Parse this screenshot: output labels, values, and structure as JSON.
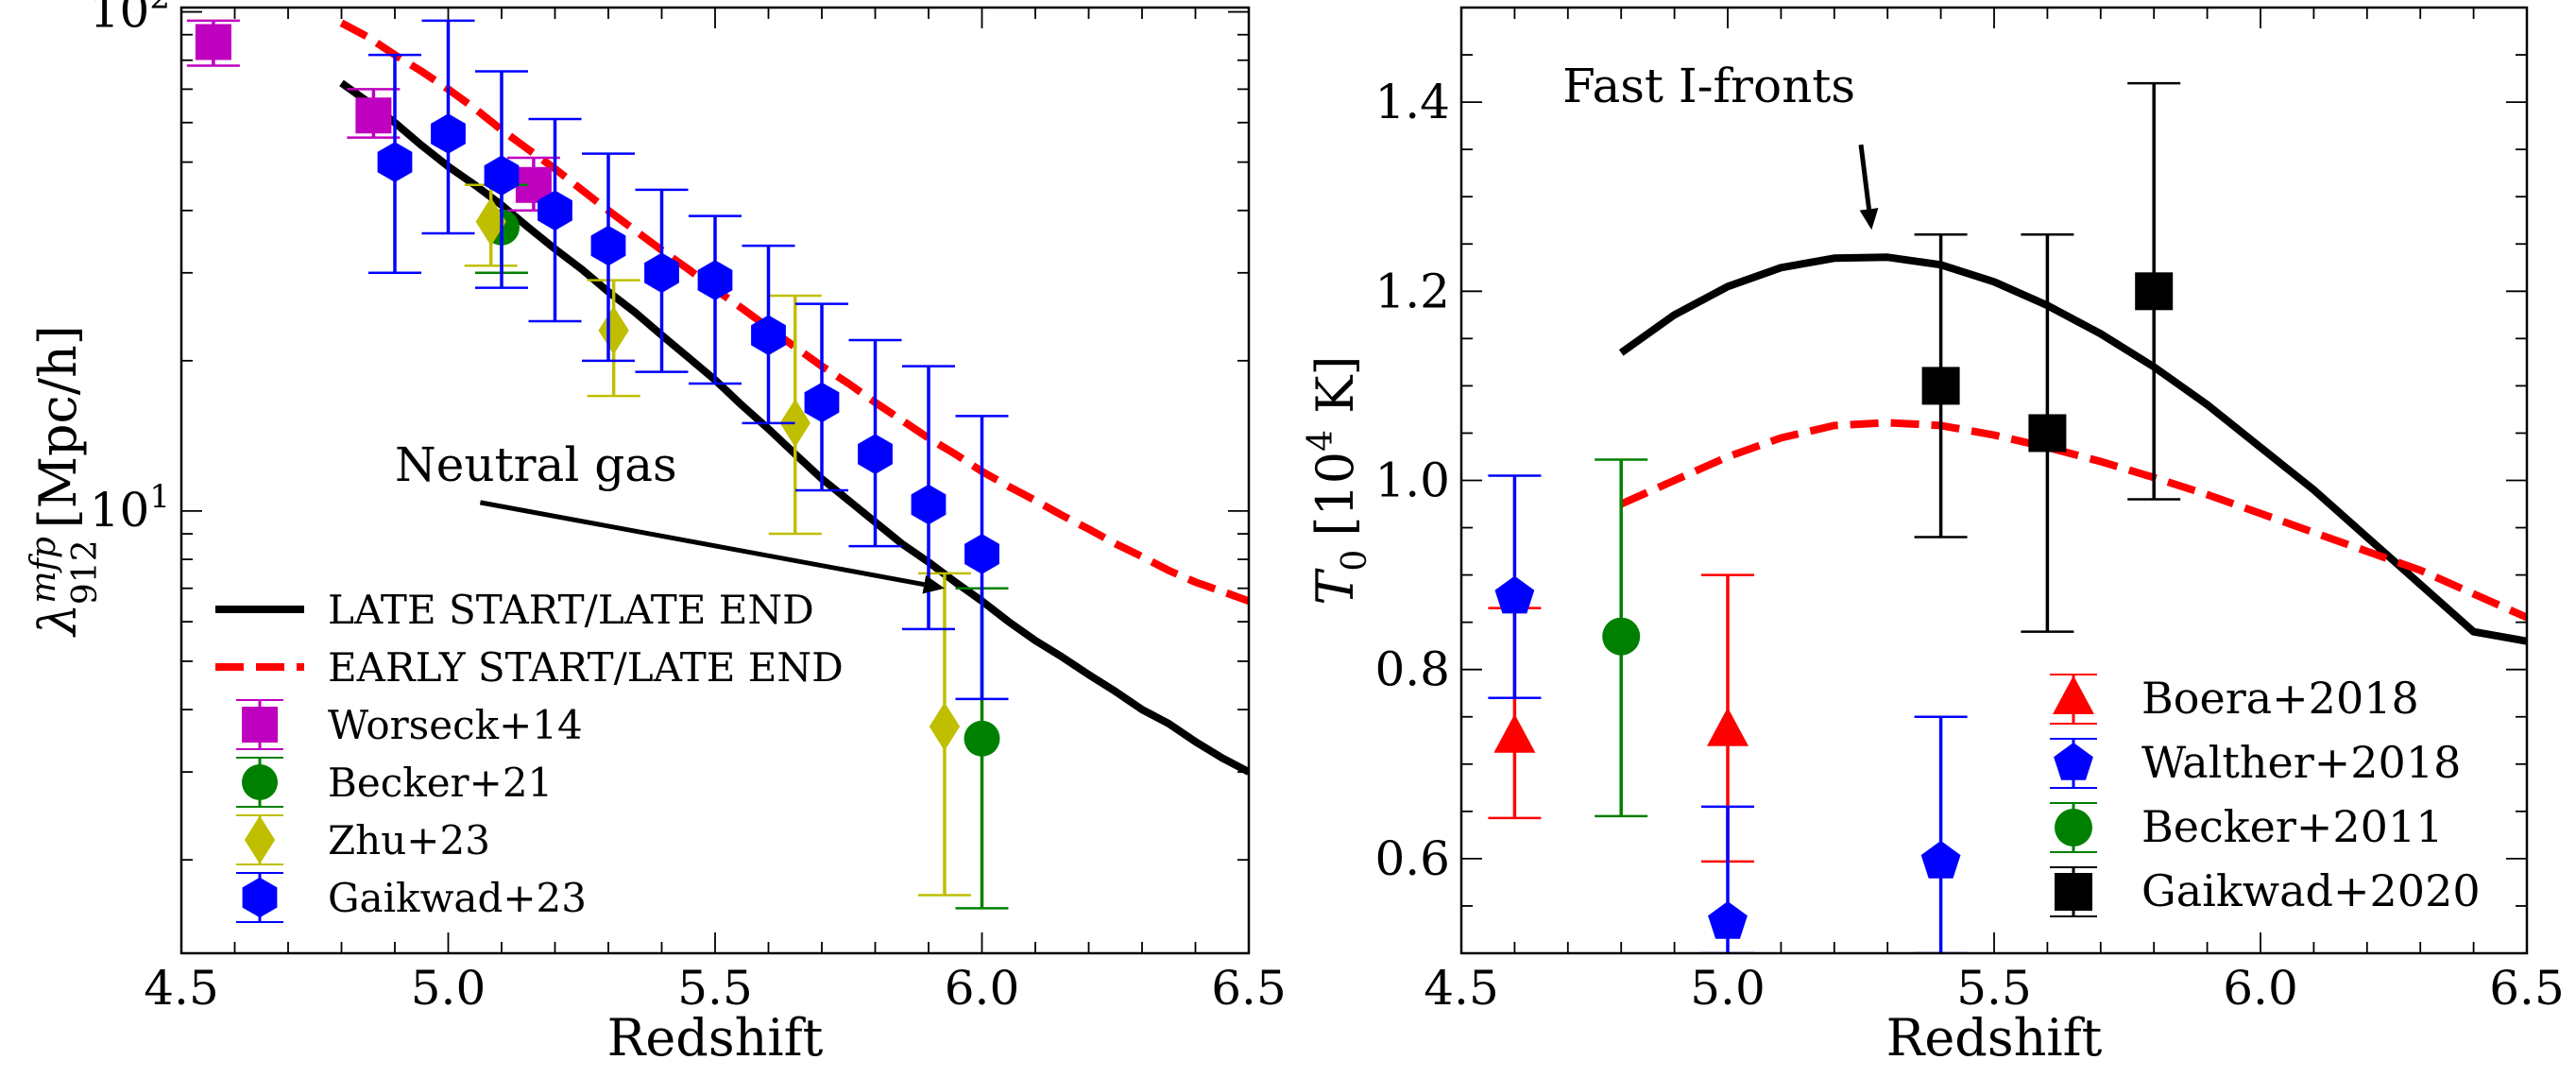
{
  "chart_data": [
    {
      "type": "line",
      "xlabel": "Redshift",
      "ylabel": "λ₉₁₂ᵐᶠᵖ [Mpc/h]",
      "ylabel_parts": {
        "symbol": "λ",
        "sub": "912",
        "sup": "mfp",
        "unit": "[Mpc/h]"
      },
      "xlim": [
        4.5,
        6.5
      ],
      "ylim": [
        1.3,
        102
      ],
      "yscale": "log",
      "grid": false,
      "legend_position": "lower-left",
      "x_ticks": [
        4.5,
        5.0,
        5.5,
        6.0,
        6.5
      ],
      "x_tick_labels": [
        "4.5",
        "5.0",
        "5.5",
        "6.0",
        "6.5"
      ],
      "y_ticks": [
        10,
        100
      ],
      "y_tick_labels": [
        {
          "base": "10",
          "exp": "1"
        },
        {
          "base": "10",
          "exp": "2"
        }
      ],
      "series": [
        {
          "name": "LATE START/LATE END",
          "kind": "line",
          "color": "#000000",
          "dash": "solid",
          "x": [
            4.8,
            4.85,
            4.9,
            4.95,
            5.0,
            5.05,
            5.1,
            5.15,
            5.2,
            5.25,
            5.3,
            5.35,
            5.4,
            5.45,
            5.5,
            5.55,
            5.6,
            5.65,
            5.7,
            5.75,
            5.8,
            5.85,
            5.9,
            5.95,
            6.0,
            6.05,
            6.1,
            6.15,
            6.2,
            6.25,
            6.3,
            6.35,
            6.4,
            6.45,
            6.5
          ],
          "y": [
            72,
            66,
            60,
            54,
            49,
            45,
            41,
            37,
            33.5,
            30.5,
            27.5,
            25,
            22.5,
            20.3,
            18.3,
            16.3,
            14.6,
            13.0,
            11.6,
            10.5,
            9.5,
            8.6,
            7.9,
            7.2,
            6.6,
            6.0,
            5.5,
            5.1,
            4.7,
            4.35,
            4.0,
            3.75,
            3.45,
            3.2,
            3.0
          ]
        },
        {
          "name": "EARLY START/LATE END",
          "kind": "line",
          "color": "#ff0000",
          "dash": "dashed",
          "x": [
            4.8,
            4.85,
            4.9,
            4.95,
            5.0,
            5.05,
            5.1,
            5.15,
            5.2,
            5.25,
            5.3,
            5.35,
            5.4,
            5.45,
            5.5,
            5.55,
            5.6,
            5.65,
            5.7,
            5.75,
            5.8,
            5.85,
            5.9,
            5.95,
            6.0,
            6.05,
            6.1,
            6.15,
            6.2,
            6.25,
            6.3,
            6.35,
            6.4,
            6.45,
            6.5
          ],
          "y": [
            95,
            89,
            82,
            76,
            70,
            64,
            58,
            53,
            48.5,
            44,
            40,
            36.5,
            33.3,
            30.5,
            27.8,
            25.5,
            23.3,
            21.3,
            19.5,
            18.0,
            16.5,
            15.2,
            14.0,
            13.0,
            12.0,
            11.2,
            10.5,
            9.8,
            9.2,
            8.6,
            8.1,
            7.6,
            7.2,
            6.9,
            6.6
          ]
        },
        {
          "name": "Worseck+14",
          "kind": "points",
          "marker": "square",
          "color": "#bf00bf",
          "x": [
            4.56,
            4.86,
            5.16
          ],
          "y": [
            87,
            62,
            45
          ],
          "yerr_low": [
            78,
            56,
            40
          ],
          "yerr_high": [
            96,
            70,
            51
          ]
        },
        {
          "name": "Becker+21",
          "kind": "points",
          "marker": "circle",
          "color": "#008000",
          "x": [
            5.1,
            6.0
          ],
          "y": [
            37,
            3.5
          ],
          "yerr_low": [
            30,
            1.6
          ],
          "yerr_high": [
            45,
            7.0
          ]
        },
        {
          "name": "Zhu+23",
          "kind": "points",
          "marker": "diamond",
          "color": "#bfbf00",
          "x": [
            5.08,
            5.31,
            5.65,
            5.93
          ],
          "y": [
            38,
            23,
            15,
            3.7
          ],
          "yerr_low": [
            31,
            17,
            9,
            1.7
          ],
          "yerr_high": [
            45,
            29,
            27,
            7.5
          ]
        },
        {
          "name": "Gaikwad+23",
          "kind": "points",
          "marker": "hexagon",
          "color": "#0000ff",
          "x": [
            4.9,
            5.0,
            5.1,
            5.2,
            5.3,
            5.4,
            5.5,
            5.6,
            5.7,
            5.8,
            5.9,
            6.0
          ],
          "y": [
            50,
            57,
            47,
            40,
            34,
            30,
            29,
            22.5,
            16.5,
            13,
            10.3,
            8.2
          ],
          "yerr_low": [
            30,
            36,
            28,
            24,
            20,
            19,
            18,
            15,
            11,
            8.5,
            5.8,
            4.2
          ],
          "yerr_high": [
            82,
            96,
            76,
            61,
            52,
            44,
            39,
            34,
            26,
            22,
            19.5,
            15.5
          ]
        }
      ],
      "annotations": [
        {
          "text": "Neutral gas",
          "x": 4.9,
          "y": 11.5,
          "arrow_from": [
            5.06,
            10.4
          ],
          "arrow_to": [
            5.93,
            7.0
          ]
        }
      ]
    },
    {
      "type": "line",
      "xlabel": "Redshift",
      "ylabel": "T₀ [10⁴ K]",
      "ylabel_parts": {
        "symbol": "T",
        "sub": "0",
        "unit_pre": "[10",
        "unit_sup": "4",
        "unit_post": " K]"
      },
      "xlim": [
        4.5,
        6.5
      ],
      "ylim": [
        0.5,
        1.5
      ],
      "grid": false,
      "legend_position": "lower-right",
      "x_ticks": [
        4.5,
        5.0,
        5.5,
        6.0,
        6.5
      ],
      "x_tick_labels": [
        "4.5",
        "5.0",
        "5.5",
        "6.0",
        "6.5"
      ],
      "y_ticks": [
        0.6,
        0.8,
        1.0,
        1.2,
        1.4
      ],
      "y_tick_labels": [
        "0.6",
        "0.8",
        "1.0",
        "1.2",
        "1.4"
      ],
      "series": [
        {
          "name": "LATE START/LATE END",
          "kind": "line",
          "color": "#000000",
          "dash": "solid",
          "x": [
            4.8,
            4.9,
            5.0,
            5.1,
            5.2,
            5.3,
            5.4,
            5.5,
            5.6,
            5.7,
            5.8,
            5.9,
            6.0,
            6.1,
            6.2,
            6.3,
            6.4,
            6.5
          ],
          "y": [
            1.135,
            1.175,
            1.205,
            1.225,
            1.235,
            1.236,
            1.228,
            1.21,
            1.185,
            1.155,
            1.12,
            1.08,
            1.035,
            0.99,
            0.94,
            0.89,
            0.84,
            0.83
          ]
        },
        {
          "name": "EARLY START/LATE END",
          "kind": "line",
          "color": "#ff0000",
          "dash": "dashed",
          "x": [
            4.8,
            4.9,
            5.0,
            5.1,
            5.2,
            5.3,
            5.4,
            5.5,
            5.6,
            5.7,
            5.8,
            5.9,
            6.0,
            6.1,
            6.2,
            6.3,
            6.4,
            6.5
          ],
          "y": [
            0.975,
            1.0,
            1.025,
            1.045,
            1.058,
            1.061,
            1.058,
            1.048,
            1.035,
            1.02,
            1.003,
            0.985,
            0.965,
            0.945,
            0.925,
            0.905,
            0.88,
            0.855
          ]
        },
        {
          "name": "Boera+2018",
          "kind": "points",
          "marker": "triangle",
          "color": "#ff0000",
          "x": [
            4.6,
            5.0
          ],
          "y": [
            0.728,
            0.735
          ],
          "yerr_low": [
            0.643,
            0.597
          ],
          "yerr_high": [
            0.865,
            0.9
          ]
        },
        {
          "name": "Walther+2018",
          "kind": "points",
          "marker": "pentagon",
          "color": "#0000ff",
          "x": [
            4.6,
            5.0,
            5.4
          ],
          "y": [
            0.877,
            0.533,
            0.597
          ],
          "yerr_low": [
            0.77,
            0.5,
            0.5
          ],
          "yerr_high": [
            1.005,
            0.655,
            0.75
          ]
        },
        {
          "name": "Becker+2011",
          "kind": "points",
          "marker": "circle",
          "color": "#008000",
          "x": [
            4.8
          ],
          "y": [
            0.835
          ],
          "yerr_low": [
            0.645
          ],
          "yerr_high": [
            1.022
          ]
        },
        {
          "name": "Gaikwad+2020",
          "kind": "points",
          "marker": "square",
          "color": "#000000",
          "x": [
            5.4,
            5.6,
            5.8
          ],
          "y": [
            1.1,
            1.05,
            1.2
          ],
          "yerr_low": [
            0.94,
            0.84,
            0.98
          ],
          "yerr_high": [
            1.26,
            1.26,
            1.42
          ]
        }
      ],
      "annotations": [
        {
          "text": "Fast I-fronts",
          "x": 4.69,
          "y": 1.4,
          "arrow_from": [
            5.25,
            1.355
          ],
          "arrow_to": [
            5.27,
            1.265
          ]
        }
      ]
    }
  ]
}
